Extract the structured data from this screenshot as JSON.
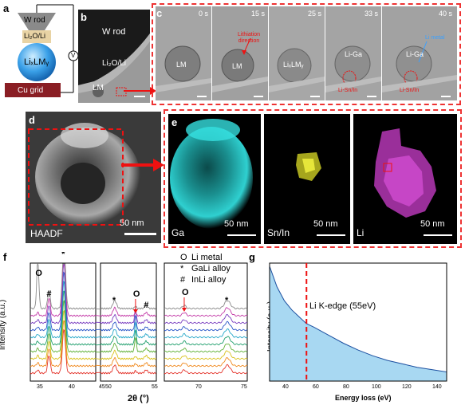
{
  "panels": {
    "a": {
      "label": "a",
      "w_rod": "W rod",
      "li2o_li": "Li₂O/Li",
      "lixlmy": "LiₓLMᵧ",
      "cu_grid": "Cu grid",
      "v": "V"
    },
    "b": {
      "label": "b",
      "w_rod": "W rod",
      "li2o_li": "Li₂O/Li",
      "lm": "LM"
    },
    "c": {
      "label": "c",
      "frames": [
        {
          "time": "0 s",
          "center": "LM"
        },
        {
          "time": "15 s",
          "center": "LM",
          "note": "Lithiation direction"
        },
        {
          "time": "25 s",
          "center": "LiₓLMᵧ"
        },
        {
          "time": "33 s",
          "center": "Li-Ga",
          "note": "Li-Sn/In"
        },
        {
          "time": "40 s",
          "center": "Li-Ga",
          "note": "Li-Sn/In",
          "note2": "Li metal"
        }
      ]
    },
    "d": {
      "label": "d",
      "haadf": "HAADF",
      "scale": "50 nm"
    },
    "e": {
      "label": "e",
      "maps": [
        {
          "name": "Ga",
          "scale": "50 nm",
          "color": "#1fc6c6"
        },
        {
          "name": "Sn/In",
          "scale": "50 nm",
          "color": "#d6d61a"
        },
        {
          "name": "Li",
          "scale": "50 nm",
          "color": "#c03ec0"
        }
      ]
    },
    "f": {
      "label": "f",
      "ylabel": "Intensity (a.u.)",
      "xlabel": "2θ (°)",
      "legend": [
        {
          "symbol": "O",
          "text": "Li metal"
        },
        {
          "symbol": "*",
          "text": "GaLi alloy"
        },
        {
          "symbol": "#",
          "text": "InLi alloy"
        }
      ],
      "xticks_1": [
        "35",
        "40",
        "45"
      ],
      "xticks_2": [
        "50",
        "55"
      ],
      "xticks_3": [
        "70",
        "75"
      ]
    },
    "g": {
      "label": "g",
      "ylabel": "Intensity (a.u.)",
      "xlabel": "Energy loss (eV)",
      "annotation": "Li K-edge (55eV)",
      "xticks": [
        "40",
        "60",
        "80",
        "100",
        "120",
        "140"
      ]
    }
  },
  "chart_data": [
    {
      "type": "line",
      "panel": "f",
      "xlabel": "2θ (°)",
      "ylabel": "Intensity (a.u.)",
      "series_count": 10,
      "peaks": [
        {
          "x": 36.2,
          "marker": "O"
        },
        {
          "x": 38.0,
          "marker": "#"
        },
        {
          "x": 40.4,
          "marker": "*"
        },
        {
          "x": 48.3,
          "marker": "*"
        },
        {
          "x": 52.4,
          "marker": "O"
        },
        {
          "x": 54.5,
          "marker": "#"
        },
        {
          "x": 68.4,
          "marker": "O"
        },
        {
          "x": 73.6,
          "marker": "*"
        }
      ]
    },
    {
      "type": "area",
      "panel": "g",
      "xlabel": "Energy loss (eV)",
      "ylabel": "Intensity (a.u.)",
      "xlim": [
        30,
        150
      ],
      "x": [
        30,
        35,
        40,
        45,
        50,
        55,
        60,
        70,
        80,
        90,
        100,
        110,
        120,
        130,
        140,
        150
      ],
      "y": [
        1.0,
        0.82,
        0.7,
        0.62,
        0.56,
        0.5,
        0.47,
        0.4,
        0.33,
        0.27,
        0.22,
        0.18,
        0.15,
        0.12,
        0.1,
        0.08
      ],
      "marker_x": 55,
      "annotation": "Li K-edge (55eV)"
    }
  ]
}
